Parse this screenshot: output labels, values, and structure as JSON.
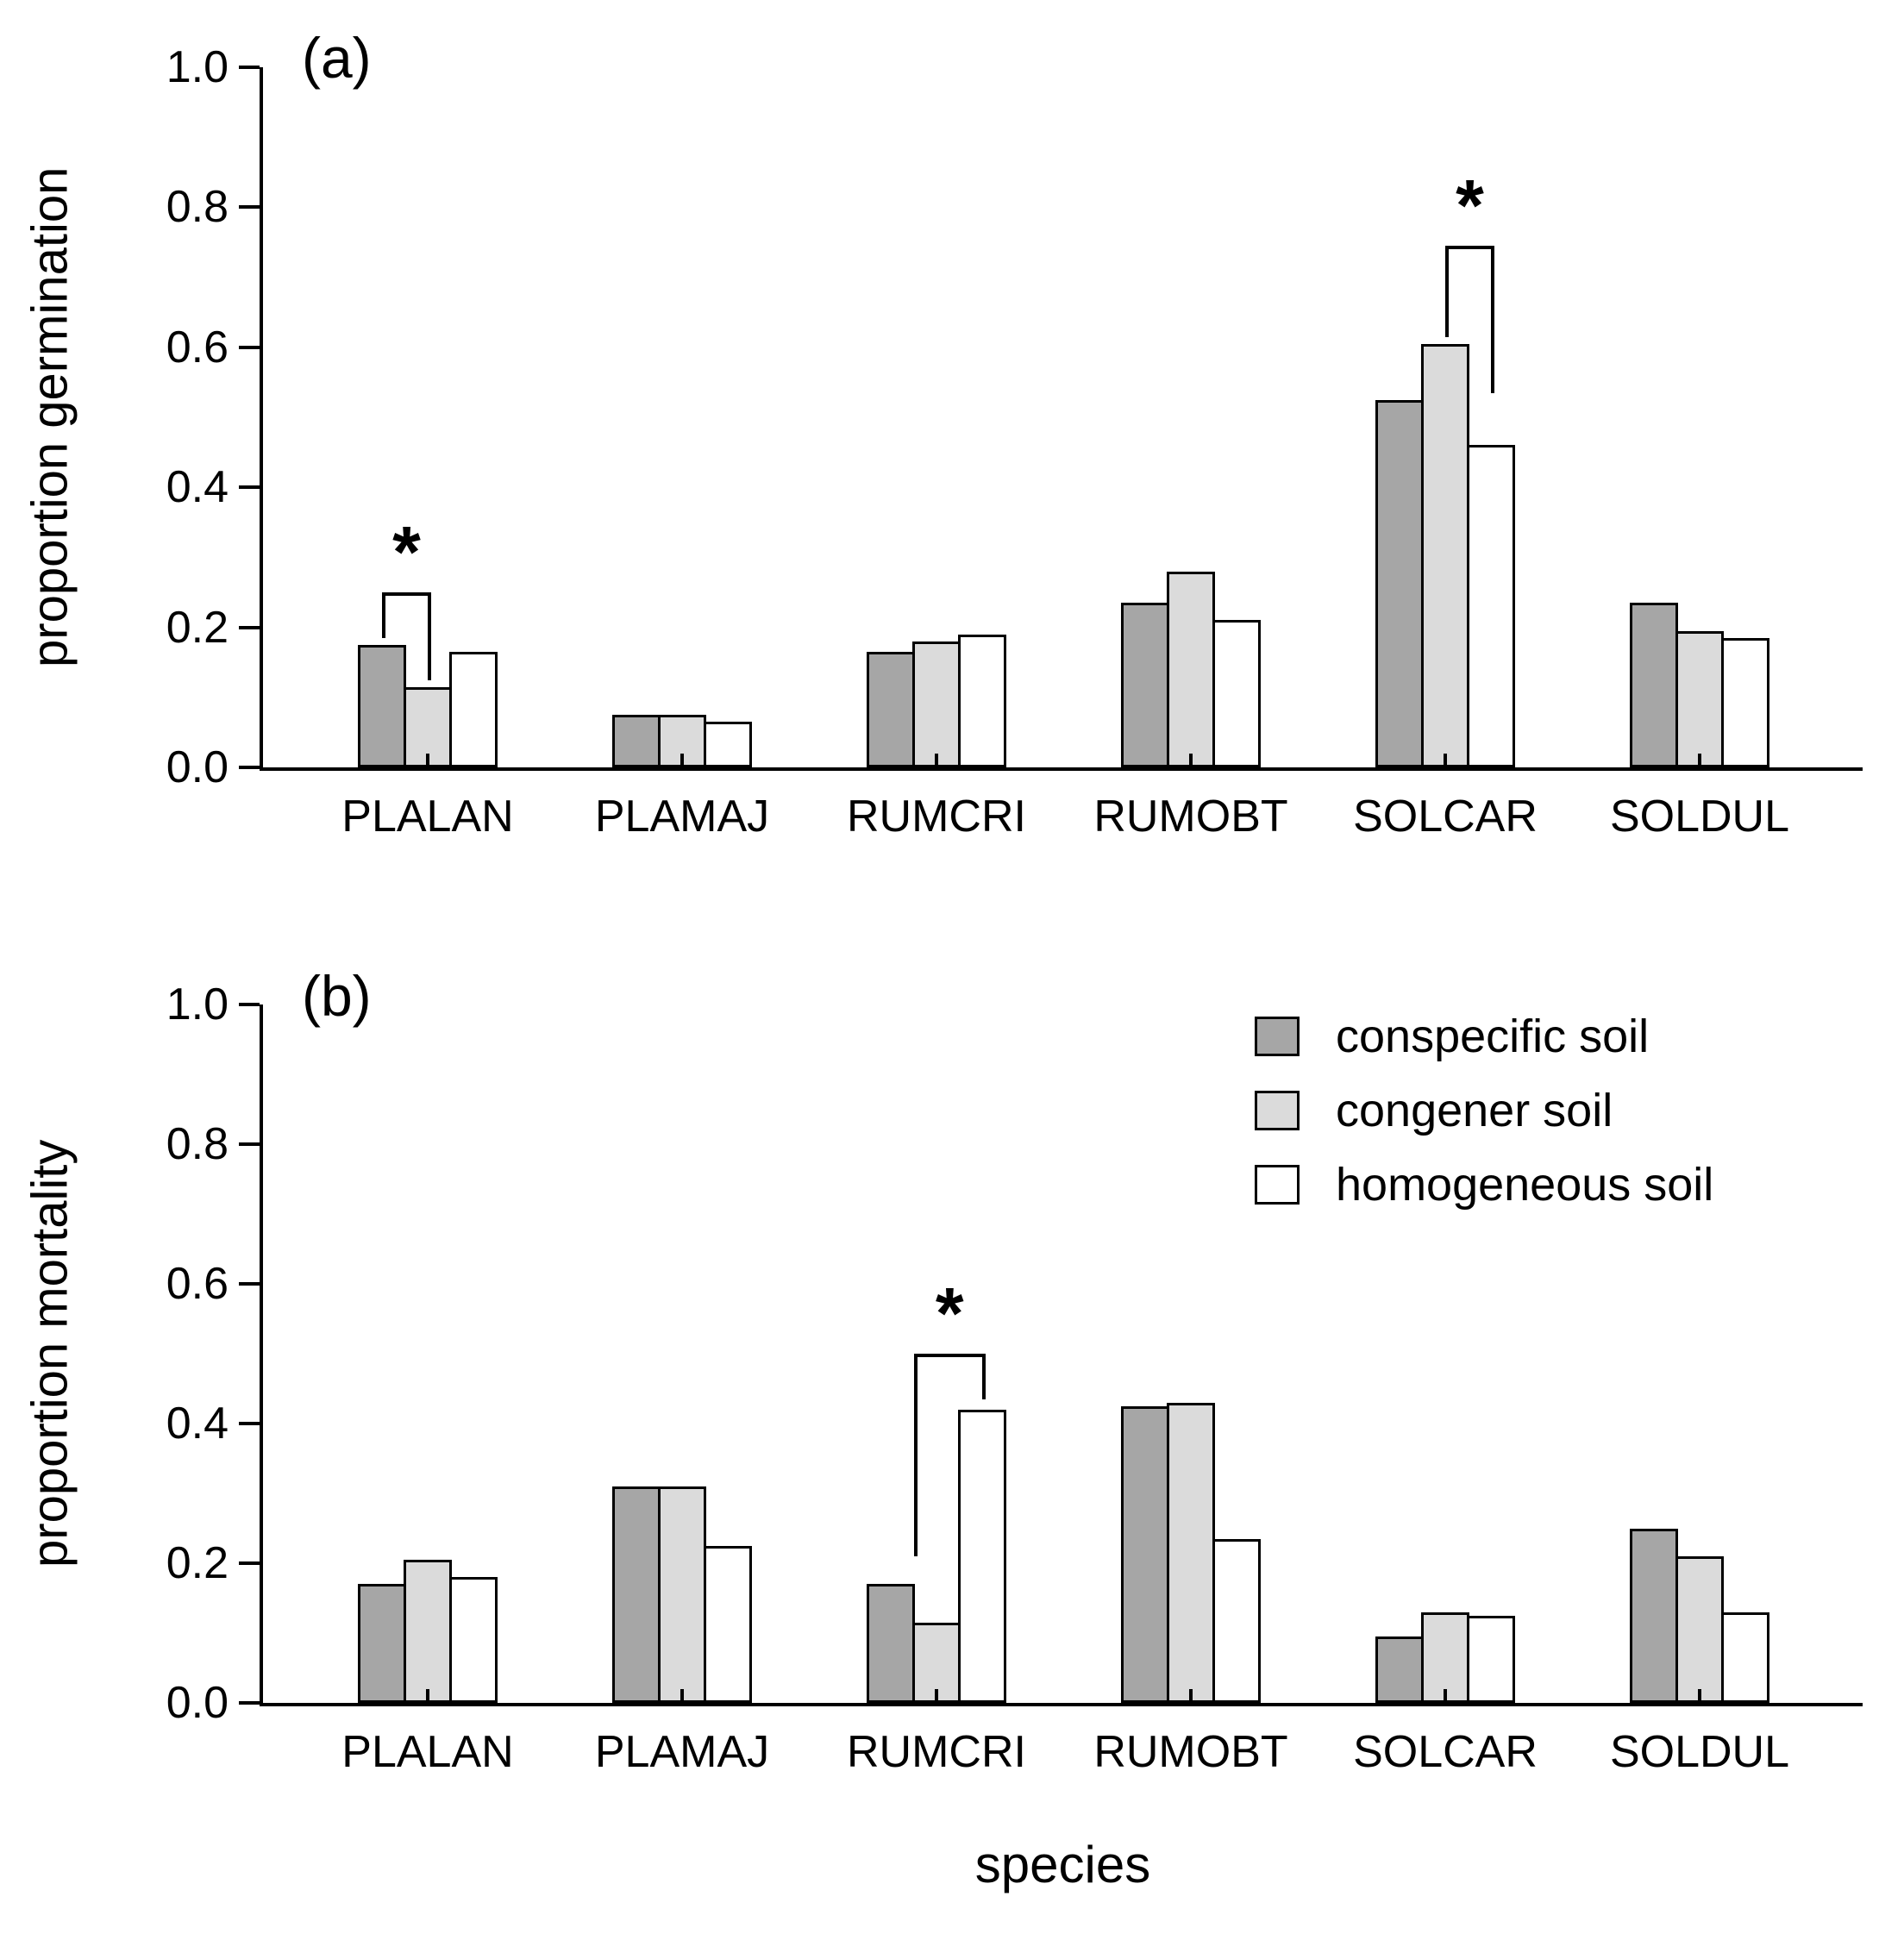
{
  "figure": {
    "panel_a_letter": "(a)",
    "panel_b_letter": "(b)",
    "xlabel": "species"
  },
  "series": [
    {
      "name": "conspecific soil",
      "color": "#a6a6a6"
    },
    {
      "name": "congener soil",
      "color": "#dbdbdb"
    },
    {
      "name": "homogeneous soil",
      "color": "#ffffff"
    }
  ],
  "legend": {
    "position": "top-right-of-panel-b",
    "entries": [
      "conspecific soil",
      "congener soil",
      "homogeneous soil"
    ]
  },
  "chart_data": [
    {
      "type": "bar",
      "panel": "a",
      "title": "",
      "ylabel": "proportion germination",
      "xlabel": "",
      "ylim": [
        0.0,
        1.0
      ],
      "yticks": [
        0.0,
        0.2,
        0.4,
        0.6,
        0.8,
        1.0
      ],
      "grid": false,
      "categories": [
        "PLALAN",
        "PLAMAJ",
        "RUMCRI",
        "RUMOBT",
        "SOLCAR",
        "SOLDUL"
      ],
      "series": [
        {
          "name": "conspecific soil",
          "values": [
            0.175,
            0.075,
            0.165,
            0.235,
            0.525,
            0.235
          ]
        },
        {
          "name": "congener soil",
          "values": [
            0.115,
            0.075,
            0.18,
            0.28,
            0.605,
            0.195
          ]
        },
        {
          "name": "homogeneous soil",
          "values": [
            0.165,
            0.065,
            0.19,
            0.21,
            0.46,
            0.185
          ]
        }
      ],
      "annotations": [
        {
          "category": "PLALAN",
          "label": "*",
          "x1_bar": 0,
          "x2_bar": 1,
          "bar_y": 0.25,
          "leg1_y": 0.185,
          "leg2_y": 0.125
        },
        {
          "category": "SOLCAR",
          "label": "*",
          "x1_bar": 1,
          "x2_bar": 2,
          "bar_y": 0.745,
          "leg1_y": 0.615,
          "leg2_y": 0.535
        }
      ]
    },
    {
      "type": "bar",
      "panel": "b",
      "title": "",
      "ylabel": "proportion mortality",
      "xlabel": "species",
      "ylim": [
        0.0,
        1.0
      ],
      "yticks": [
        0.0,
        0.2,
        0.4,
        0.6,
        0.8,
        1.0
      ],
      "grid": false,
      "categories": [
        "PLALAN",
        "PLAMAJ",
        "RUMCRI",
        "RUMOBT",
        "SOLCAR",
        "SOLDUL"
      ],
      "series": [
        {
          "name": "conspecific soil",
          "values": [
            0.17,
            0.31,
            0.17,
            0.425,
            0.095,
            0.25
          ]
        },
        {
          "name": "congener soil",
          "values": [
            0.205,
            0.31,
            0.115,
            0.43,
            0.13,
            0.21
          ]
        },
        {
          "name": "homogeneous soil",
          "values": [
            0.18,
            0.225,
            0.42,
            0.235,
            0.125,
            0.13
          ]
        }
      ],
      "annotations": [
        {
          "category": "RUMCRI",
          "label": "*",
          "x1_bar": 0.5,
          "x2_bar": 2,
          "bar_y": 0.5,
          "leg1_y": 0.21,
          "leg2_y": 0.435
        }
      ]
    }
  ]
}
